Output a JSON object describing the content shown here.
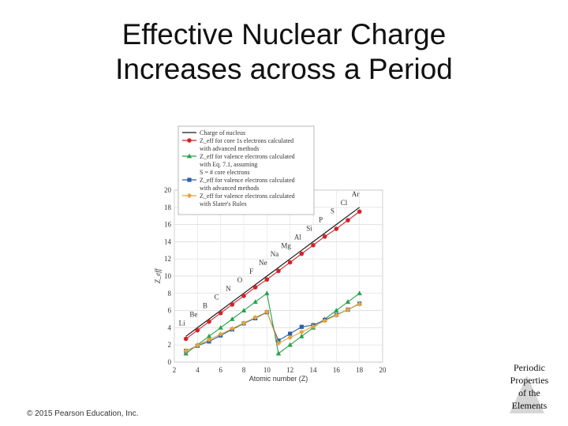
{
  "slide": {
    "title_lines": [
      "Effective Nuclear Charge",
      "Increases across a Period"
    ],
    "copyright": "© 2015 Pearson Education, Inc.",
    "footer_lines": [
      "Periodic",
      "Properties",
      "of the",
      "Elements"
    ]
  },
  "chart_data": {
    "type": "line",
    "title": "",
    "xlabel": "Atomic number (Z)",
    "ylabel": "Z_eff",
    "xlim": [
      2,
      20
    ],
    "ylim": [
      0,
      20
    ],
    "x_ticks": [
      2,
      4,
      6,
      8,
      10,
      12,
      14,
      16,
      18,
      20
    ],
    "y_ticks": [
      0,
      2,
      4,
      6,
      8,
      10,
      12,
      14,
      16,
      18,
      20
    ],
    "grid": true,
    "legend_position": "top-left",
    "x": [
      3,
      4,
      5,
      6,
      7,
      8,
      9,
      10,
      11,
      12,
      13,
      14,
      15,
      16,
      17,
      18
    ],
    "element_labels": [
      {
        "symbol": "Li",
        "z": 3,
        "y": 4.0
      },
      {
        "symbol": "Be",
        "z": 4,
        "y": 5.0
      },
      {
        "symbol": "B",
        "z": 5,
        "y": 6.0
      },
      {
        "symbol": "C",
        "z": 6,
        "y": 7.0
      },
      {
        "symbol": "N",
        "z": 7,
        "y": 8.0
      },
      {
        "symbol": "O",
        "z": 8,
        "y": 9.0
      },
      {
        "symbol": "F",
        "z": 9,
        "y": 10.0
      },
      {
        "symbol": "Ne",
        "z": 10,
        "y": 11.0
      },
      {
        "symbol": "Na",
        "z": 11,
        "y": 12.0
      },
      {
        "symbol": "Mg",
        "z": 12,
        "y": 13.0
      },
      {
        "symbol": "Al",
        "z": 13,
        "y": 14.0
      },
      {
        "symbol": "Si",
        "z": 14,
        "y": 15.0
      },
      {
        "symbol": "P",
        "z": 15,
        "y": 16.0
      },
      {
        "symbol": "S",
        "z": 16,
        "y": 17.0
      },
      {
        "symbol": "Cl",
        "z": 17,
        "y": 18.0
      },
      {
        "symbol": "Ar",
        "z": 18,
        "y": 19.0
      }
    ],
    "series": [
      {
        "name": "Charge of nucleus",
        "color": "#1a1a1a",
        "marker": "none",
        "values": [
          3,
          4,
          5,
          6,
          7,
          8,
          9,
          10,
          11,
          12,
          13,
          14,
          15,
          16,
          17,
          18
        ]
      },
      {
        "name": "Z_eff for core 1s electrons calculated with advanced methods",
        "color": "#d2232a",
        "marker": "circle",
        "values": [
          2.7,
          3.7,
          4.7,
          5.7,
          6.7,
          7.7,
          8.7,
          9.6,
          10.6,
          11.6,
          12.6,
          13.6,
          14.6,
          15.5,
          16.5,
          17.5
        ]
      },
      {
        "name": "Z_eff for valence electrons calculated with Eq. 7.1, assuming S = # core electrons",
        "color": "#27a24a",
        "marker": "triangle",
        "values": [
          1,
          2,
          3,
          4,
          5,
          6,
          7,
          8,
          1,
          2,
          3,
          4,
          5,
          6,
          7,
          8
        ]
      },
      {
        "name": "Z_eff for valence electrons calculated with advanced methods",
        "color": "#2a5fa8",
        "marker": "square",
        "values": [
          1.3,
          1.9,
          2.4,
          3.1,
          3.8,
          4.5,
          5.1,
          5.8,
          2.5,
          3.3,
          4.1,
          4.3,
          4.9,
          5.5,
          6.1,
          6.8
        ]
      },
      {
        "name": "Z_eff for valence electrons calculated with Slater's Rules",
        "color": "#e8a33a",
        "marker": "diamond",
        "values": [
          1.3,
          1.95,
          2.6,
          3.25,
          3.9,
          4.55,
          5.2,
          5.85,
          2.2,
          2.85,
          3.5,
          4.15,
          4.8,
          5.45,
          6.1,
          6.75
        ]
      }
    ],
    "legend_entries": [
      [
        "Charge of nucleus"
      ],
      [
        "Z_eff for core 1s electrons calculated",
        "with advanced methods"
      ],
      [
        "Z_eff for valence electrons calculated",
        "with Eq. 7.1, assuming",
        "S = # core electrons"
      ],
      [
        "Z_eff for valence electrons calculated",
        "with advanced methods"
      ],
      [
        "Z_eff for valence electrons calculated",
        "with Slater's Rules"
      ]
    ]
  }
}
